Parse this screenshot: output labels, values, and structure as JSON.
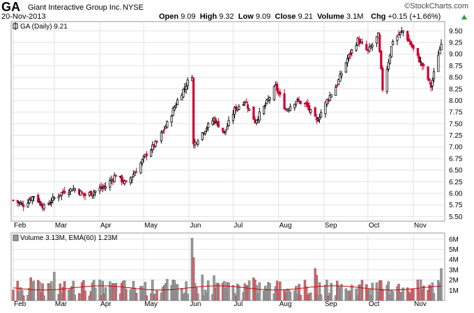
{
  "header": {
    "symbol": "GA",
    "company": "Giant Interactive Group Inc.",
    "exchange": "NYSE",
    "date": "20-Nov-2013",
    "open_label": "Open",
    "open": "9.09",
    "high_label": "High",
    "high": "9.32",
    "low_label": "Low",
    "low": "9.09",
    "close_label": "Close",
    "close": "9.21",
    "volume_label": "Volume",
    "volume": "3.1M",
    "chg_label": "Chg",
    "chg": "+0.15 (+1.66%)",
    "watermark": "©StockCharts.com"
  },
  "colors": {
    "up": "#000000",
    "down": "#cc0033",
    "vol_up": "#9a9a9a",
    "vol_down": "#e0606a",
    "ema": "#cc0000",
    "grid": "#e2e2e2",
    "chg_arrow": "#2e9e3c"
  },
  "chart_data": [
    {
      "type": "candlestick",
      "legend": "GA (Daily) 9.21",
      "ylim": [
        5.4,
        9.7
      ],
      "y_ticks": [
        "5.50",
        "5.75",
        "6.00",
        "6.25",
        "6.50",
        "6.75",
        "7.00",
        "7.25",
        "7.50",
        "7.75",
        "8.00",
        "8.25",
        "8.50",
        "8.75",
        "9.00",
        "9.25",
        "9.50"
      ],
      "x_tick_labels": [
        "Feb",
        "Mar",
        "Apr",
        "May",
        "Jun",
        "Jul",
        "Aug",
        "Sep",
        "Oct",
        "Nov"
      ],
      "grid": true,
      "close_path": [
        [
          "Feb 1",
          5.85
        ],
        [
          "Feb 8",
          5.75
        ],
        [
          "Feb 15",
          5.95
        ],
        [
          "Feb 22",
          5.7
        ],
        [
          "Mar 1",
          5.9
        ],
        [
          "Mar 8",
          6.05
        ],
        [
          "Mar 15",
          6.1
        ],
        [
          "Mar 22",
          5.95
        ],
        [
          "Mar 29",
          6.05
        ],
        [
          "Apr 5",
          6.15
        ],
        [
          "Apr 12",
          6.4
        ],
        [
          "Apr 19",
          6.2
        ],
        [
          "Apr 26",
          6.5
        ],
        [
          "May 3",
          6.85
        ],
        [
          "May 10",
          7.1
        ],
        [
          "May 17",
          7.5
        ],
        [
          "May 24",
          8.0
        ],
        [
          "May 31",
          8.4
        ],
        [
          "Jun 3",
          8.55
        ],
        [
          "Jun 4",
          7.05
        ],
        [
          "Jun 11",
          7.35
        ],
        [
          "Jun 18",
          7.6
        ],
        [
          "Jun 25",
          7.3
        ],
        [
          "Jul 2",
          7.8
        ],
        [
          "Jul 9",
          8.0
        ],
        [
          "Jul 16",
          7.55
        ],
        [
          "Jul 23",
          7.9
        ],
        [
          "Jul 30",
          8.3
        ],
        [
          "Aug 6",
          7.8
        ],
        [
          "Aug 13",
          8.0
        ],
        [
          "Aug 20",
          7.9
        ],
        [
          "Aug 27",
          7.55
        ],
        [
          "Sep 3",
          8.0
        ],
        [
          "Sep 10",
          8.35
        ],
        [
          "Sep 17",
          8.9
        ],
        [
          "Sep 24",
          9.3
        ],
        [
          "Oct 1",
          9.05
        ],
        [
          "Oct 8",
          9.4
        ],
        [
          "Oct 11",
          8.25
        ],
        [
          "Oct 18",
          9.3
        ],
        [
          "Oct 25",
          9.5
        ],
        [
          "Nov 1",
          9.1
        ],
        [
          "Nov 8",
          8.7
        ],
        [
          "Nov 13",
          8.3
        ],
        [
          "Nov 18",
          9.0
        ],
        [
          "Nov 20",
          9.21
        ]
      ]
    },
    {
      "type": "bar",
      "legend": "Volume 3.13M, EMA(60) 1.23M",
      "ylim": [
        0,
        6.6
      ],
      "y_ticks": [
        "1M",
        "2M",
        "3M",
        "4M",
        "5M",
        "6M"
      ],
      "x_tick_labels": [
        "Feb",
        "Mar",
        "Apr",
        "May",
        "Jun",
        "Jul",
        "Aug",
        "Sep",
        "Oct",
        "Nov"
      ],
      "ema_level_M": 1.23,
      "spikes_M": [
        [
          "Jun 3",
          6.1
        ],
        [
          "Jun 4",
          4.2
        ],
        [
          "Nov 20",
          3.13
        ]
      ]
    }
  ]
}
